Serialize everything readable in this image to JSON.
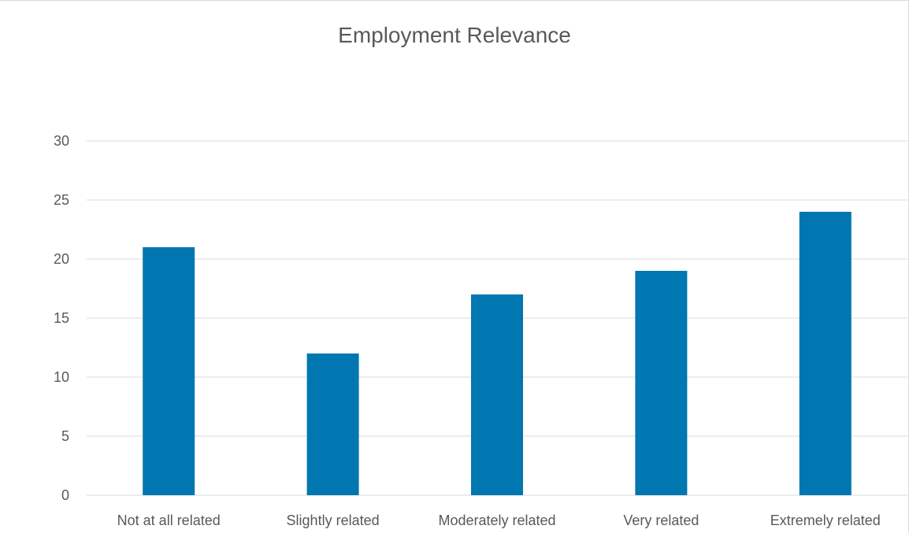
{
  "chart_data": {
    "type": "bar",
    "title": "Employment Relevance",
    "categories": [
      "Not at all related",
      "Slightly related",
      "Moderately related",
      "Very related",
      "Extremely related"
    ],
    "values": [
      21,
      12,
      17,
      19,
      24
    ],
    "xlabel": "",
    "ylabel": "",
    "ylim": [
      0,
      30
    ],
    "yticks": [
      "0",
      "5",
      "10",
      "15",
      "20",
      "25",
      "30"
    ],
    "grid": true,
    "legend": "none",
    "bar_color": "#0077B0",
    "grid_color": "#d9d9d9",
    "text_color": "#595959"
  }
}
